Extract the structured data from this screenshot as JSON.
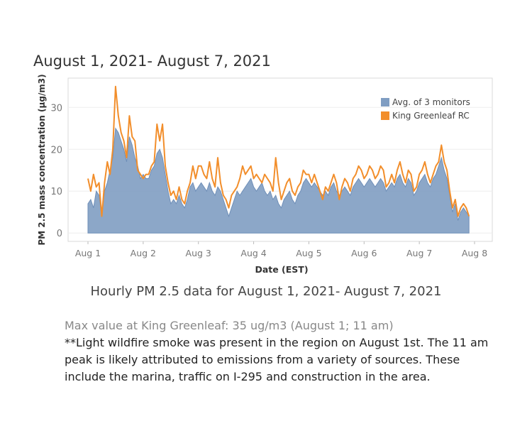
{
  "header": {
    "title": "August 1, 2021- August 7, 2021"
  },
  "caption": "Hourly PM 2.5 data for August 1, 2021- August 7, 2021",
  "notes": {
    "max_value": "Max value at King Greenleaf: 35 ug/m3 (August 1; 11 am)",
    "body": "**Light wildfire smoke was present in the region on August 1st. The 11 am peak is likely attributed to emissions from a variety of sources. These include the marina, traffic on I-295 and construction in the area."
  },
  "chart_data": {
    "type": "area",
    "xlabel": "Date (EST)",
    "ylabel": "PM 2.5 mass concentration (µg/m3)",
    "xlim": [
      0,
      7.0
    ],
    "ylim": [
      -2,
      37
    ],
    "x_ticks": [
      0,
      1,
      2,
      3,
      4,
      5,
      6,
      7
    ],
    "x_tick_labels": [
      "Aug 1",
      "Aug 2",
      "Aug 3",
      "Aug 4",
      "Aug 5",
      "Aug 6",
      "Aug 7",
      "Aug 8"
    ],
    "y_ticks": [
      0,
      10,
      20,
      30
    ],
    "y_tick_labels": [
      "0",
      "10",
      "20",
      "30"
    ],
    "grid": true,
    "legend": "top-right",
    "series": [
      {
        "name": "Avg. of 3 monitors",
        "color": "#7f9dc2",
        "kind": "area",
        "points": [
          [
            0.0,
            7
          ],
          [
            0.05,
            8
          ],
          [
            0.1,
            6
          ],
          [
            0.15,
            10
          ],
          [
            0.2,
            9
          ],
          [
            0.25,
            4
          ],
          [
            0.3,
            10
          ],
          [
            0.35,
            12
          ],
          [
            0.4,
            15
          ],
          [
            0.45,
            18
          ],
          [
            0.5,
            25
          ],
          [
            0.55,
            24
          ],
          [
            0.6,
            22
          ],
          [
            0.65,
            20
          ],
          [
            0.7,
            17
          ],
          [
            0.75,
            23
          ],
          [
            0.8,
            21
          ],
          [
            0.85,
            18
          ],
          [
            0.9,
            16
          ],
          [
            0.95,
            13
          ],
          [
            1.0,
            14
          ],
          [
            1.05,
            13
          ],
          [
            1.1,
            13
          ],
          [
            1.15,
            15
          ],
          [
            1.2,
            16
          ],
          [
            1.25,
            19
          ],
          [
            1.3,
            20
          ],
          [
            1.35,
            18
          ],
          [
            1.4,
            14
          ],
          [
            1.45,
            10
          ],
          [
            1.5,
            7
          ],
          [
            1.55,
            8
          ],
          [
            1.6,
            7
          ],
          [
            1.65,
            9
          ],
          [
            1.7,
            7
          ],
          [
            1.75,
            6
          ],
          [
            1.8,
            8
          ],
          [
            1.85,
            11
          ],
          [
            1.9,
            12
          ],
          [
            1.95,
            10
          ],
          [
            2.0,
            11
          ],
          [
            2.05,
            12
          ],
          [
            2.1,
            11
          ],
          [
            2.15,
            10
          ],
          [
            2.2,
            12
          ],
          [
            2.25,
            10
          ],
          [
            2.3,
            9
          ],
          [
            2.35,
            11
          ],
          [
            2.4,
            10
          ],
          [
            2.45,
            8
          ],
          [
            2.5,
            6
          ],
          [
            2.55,
            4
          ],
          [
            2.6,
            6
          ],
          [
            2.65,
            8
          ],
          [
            2.7,
            10
          ],
          [
            2.75,
            9
          ],
          [
            2.8,
            10
          ],
          [
            2.85,
            11
          ],
          [
            2.9,
            12
          ],
          [
            2.95,
            13
          ],
          [
            3.0,
            11
          ],
          [
            3.05,
            10
          ],
          [
            3.1,
            11
          ],
          [
            3.15,
            12
          ],
          [
            3.2,
            10
          ],
          [
            3.25,
            9
          ],
          [
            3.3,
            10
          ],
          [
            3.35,
            8
          ],
          [
            3.4,
            9
          ],
          [
            3.45,
            7
          ],
          [
            3.5,
            6
          ],
          [
            3.55,
            8
          ],
          [
            3.6,
            9
          ],
          [
            3.65,
            10
          ],
          [
            3.7,
            8
          ],
          [
            3.75,
            7
          ],
          [
            3.8,
            9
          ],
          [
            3.85,
            10
          ],
          [
            3.9,
            12
          ],
          [
            3.95,
            13
          ],
          [
            4.0,
            12
          ],
          [
            4.05,
            11
          ],
          [
            4.1,
            12
          ],
          [
            4.15,
            11
          ],
          [
            4.2,
            10
          ],
          [
            4.25,
            9
          ],
          [
            4.3,
            10
          ],
          [
            4.35,
            9
          ],
          [
            4.4,
            11
          ],
          [
            4.45,
            12
          ],
          [
            4.5,
            10
          ],
          [
            4.55,
            9
          ],
          [
            4.6,
            10
          ],
          [
            4.65,
            11
          ],
          [
            4.7,
            10
          ],
          [
            4.75,
            9
          ],
          [
            4.8,
            11
          ],
          [
            4.85,
            12
          ],
          [
            4.9,
            13
          ],
          [
            4.95,
            12
          ],
          [
            5.0,
            11
          ],
          [
            5.05,
            12
          ],
          [
            5.1,
            13
          ],
          [
            5.15,
            12
          ],
          [
            5.2,
            11
          ],
          [
            5.25,
            12
          ],
          [
            5.3,
            13
          ],
          [
            5.35,
            12
          ],
          [
            5.4,
            10
          ],
          [
            5.45,
            11
          ],
          [
            5.5,
            12
          ],
          [
            5.55,
            11
          ],
          [
            5.6,
            13
          ],
          [
            5.65,
            14
          ],
          [
            5.7,
            12
          ],
          [
            5.75,
            11
          ],
          [
            5.8,
            13
          ],
          [
            5.85,
            12
          ],
          [
            5.9,
            9
          ],
          [
            5.95,
            10
          ],
          [
            6.0,
            12
          ],
          [
            6.05,
            13
          ],
          [
            6.1,
            14
          ],
          [
            6.15,
            12
          ],
          [
            6.2,
            11
          ],
          [
            6.25,
            13
          ],
          [
            6.3,
            14
          ],
          [
            6.35,
            16
          ],
          [
            6.4,
            18
          ],
          [
            6.45,
            15
          ],
          [
            6.5,
            13
          ],
          [
            6.55,
            9
          ],
          [
            6.6,
            5
          ],
          [
            6.65,
            7
          ],
          [
            6.7,
            3
          ],
          [
            6.75,
            5
          ],
          [
            6.8,
            6
          ],
          [
            6.85,
            5
          ],
          [
            6.9,
            4
          ]
        ]
      },
      {
        "name": "King Greenleaf RC",
        "color": "#f28e2b",
        "kind": "line",
        "points": [
          [
            0.0,
            13
          ],
          [
            0.05,
            10
          ],
          [
            0.1,
            14
          ],
          [
            0.15,
            11
          ],
          [
            0.2,
            12
          ],
          [
            0.25,
            4
          ],
          [
            0.3,
            12
          ],
          [
            0.35,
            17
          ],
          [
            0.4,
            14
          ],
          [
            0.45,
            20
          ],
          [
            0.5,
            35
          ],
          [
            0.55,
            28
          ],
          [
            0.6,
            24
          ],
          [
            0.65,
            22
          ],
          [
            0.7,
            18
          ],
          [
            0.75,
            28
          ],
          [
            0.8,
            23
          ],
          [
            0.85,
            22
          ],
          [
            0.9,
            15
          ],
          [
            0.95,
            14
          ],
          [
            1.0,
            13
          ],
          [
            1.05,
            14
          ],
          [
            1.1,
            14
          ],
          [
            1.15,
            16
          ],
          [
            1.2,
            17
          ],
          [
            1.25,
            26
          ],
          [
            1.3,
            22
          ],
          [
            1.35,
            26
          ],
          [
            1.4,
            16
          ],
          [
            1.45,
            12
          ],
          [
            1.5,
            9
          ],
          [
            1.55,
            10
          ],
          [
            1.6,
            8
          ],
          [
            1.65,
            11
          ],
          [
            1.7,
            8
          ],
          [
            1.75,
            7
          ],
          [
            1.8,
            10
          ],
          [
            1.85,
            12
          ],
          [
            1.9,
            16
          ],
          [
            1.95,
            13
          ],
          [
            2.0,
            16
          ],
          [
            2.05,
            16
          ],
          [
            2.1,
            14
          ],
          [
            2.15,
            13
          ],
          [
            2.2,
            17
          ],
          [
            2.25,
            13
          ],
          [
            2.3,
            11
          ],
          [
            2.35,
            18
          ],
          [
            2.4,
            12
          ],
          [
            2.45,
            9
          ],
          [
            2.5,
            8
          ],
          [
            2.55,
            6
          ],
          [
            2.6,
            9
          ],
          [
            2.65,
            10
          ],
          [
            2.7,
            11
          ],
          [
            2.75,
            13
          ],
          [
            2.8,
            16
          ],
          [
            2.85,
            14
          ],
          [
            2.9,
            15
          ],
          [
            2.95,
            16
          ],
          [
            3.0,
            13
          ],
          [
            3.05,
            14
          ],
          [
            3.1,
            13
          ],
          [
            3.15,
            12
          ],
          [
            3.2,
            14
          ],
          [
            3.25,
            13
          ],
          [
            3.3,
            12
          ],
          [
            3.35,
            10
          ],
          [
            3.4,
            18
          ],
          [
            3.45,
            12
          ],
          [
            3.5,
            8
          ],
          [
            3.55,
            10
          ],
          [
            3.6,
            12
          ],
          [
            3.65,
            13
          ],
          [
            3.7,
            10
          ],
          [
            3.75,
            9
          ],
          [
            3.8,
            11
          ],
          [
            3.85,
            12
          ],
          [
            3.9,
            15
          ],
          [
            3.95,
            14
          ],
          [
            4.0,
            14
          ],
          [
            4.05,
            12
          ],
          [
            4.1,
            14
          ],
          [
            4.15,
            12
          ],
          [
            4.2,
            10
          ],
          [
            4.25,
            8
          ],
          [
            4.3,
            11
          ],
          [
            4.35,
            10
          ],
          [
            4.4,
            12
          ],
          [
            4.45,
            14
          ],
          [
            4.5,
            12
          ],
          [
            4.55,
            8
          ],
          [
            4.6,
            11
          ],
          [
            4.65,
            13
          ],
          [
            4.7,
            12
          ],
          [
            4.75,
            10
          ],
          [
            4.8,
            13
          ],
          [
            4.85,
            14
          ],
          [
            4.9,
            16
          ],
          [
            4.95,
            15
          ],
          [
            5.0,
            13
          ],
          [
            5.05,
            14
          ],
          [
            5.1,
            16
          ],
          [
            5.15,
            15
          ],
          [
            5.2,
            13
          ],
          [
            5.25,
            14
          ],
          [
            5.3,
            16
          ],
          [
            5.35,
            15
          ],
          [
            5.4,
            11
          ],
          [
            5.45,
            12
          ],
          [
            5.5,
            14
          ],
          [
            5.55,
            12
          ],
          [
            5.6,
            15
          ],
          [
            5.65,
            17
          ],
          [
            5.7,
            14
          ],
          [
            5.75,
            12
          ],
          [
            5.8,
            15
          ],
          [
            5.85,
            14
          ],
          [
            5.9,
            10
          ],
          [
            5.95,
            11
          ],
          [
            6.0,
            14
          ],
          [
            6.05,
            15
          ],
          [
            6.1,
            17
          ],
          [
            6.15,
            14
          ],
          [
            6.2,
            12
          ],
          [
            6.25,
            14
          ],
          [
            6.3,
            16
          ],
          [
            6.35,
            17
          ],
          [
            6.4,
            21
          ],
          [
            6.45,
            17
          ],
          [
            6.5,
            15
          ],
          [
            6.55,
            10
          ],
          [
            6.6,
            6
          ],
          [
            6.65,
            8
          ],
          [
            6.7,
            4
          ],
          [
            6.75,
            6
          ],
          [
            6.8,
            7
          ],
          [
            6.85,
            6
          ],
          [
            6.9,
            4
          ]
        ]
      }
    ]
  }
}
